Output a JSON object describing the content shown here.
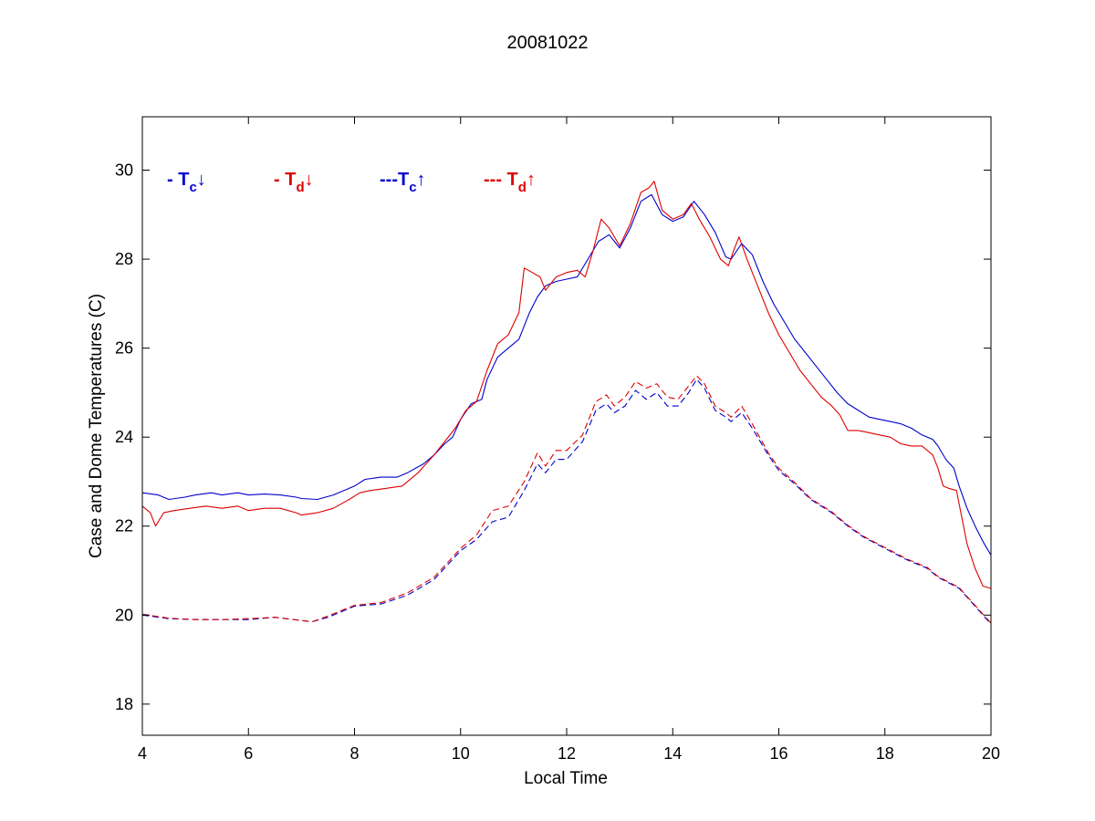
{
  "chart_data": {
    "type": "line",
    "title": "20081022",
    "xlabel": "Local Time",
    "ylabel": "Case and Dome Temperatures (C)",
    "xlim": [
      4,
      20
    ],
    "ylim": [
      17.3,
      31.2
    ],
    "xticks": [
      4,
      6,
      8,
      10,
      12,
      14,
      16,
      18,
      20
    ],
    "yticks": [
      18,
      20,
      22,
      24,
      26,
      28,
      30
    ],
    "grid": false,
    "legend_placement": "top-left",
    "legend": [
      {
        "prefix": "- ",
        "main": "T",
        "sub": "c",
        "arrow": "↓",
        "color": "#0000cc"
      },
      {
        "prefix": "- ",
        "main": "T",
        "sub": "d",
        "arrow": "↓",
        "color": "#dd0000"
      },
      {
        "prefix": "---",
        "main": "T",
        "sub": "c",
        "arrow": "↑",
        "color": "#0000cc"
      },
      {
        "prefix": "--- ",
        "main": "T",
        "sub": "d",
        "arrow": "↑",
        "color": "#dd0000"
      }
    ],
    "series": [
      {
        "color": "#0000cc",
        "dashed": false,
        "points": [
          [
            4.0,
            22.75
          ],
          [
            4.3,
            22.7
          ],
          [
            4.5,
            22.6
          ],
          [
            4.8,
            22.65
          ],
          [
            5.0,
            22.7
          ],
          [
            5.3,
            22.75
          ],
          [
            5.5,
            22.7
          ],
          [
            5.8,
            22.75
          ],
          [
            6.0,
            22.7
          ],
          [
            6.3,
            22.72
          ],
          [
            6.6,
            22.7
          ],
          [
            6.9,
            22.65
          ],
          [
            7.0,
            22.62
          ],
          [
            7.3,
            22.6
          ],
          [
            7.6,
            22.7
          ],
          [
            8.0,
            22.9
          ],
          [
            8.2,
            23.05
          ],
          [
            8.5,
            23.1
          ],
          [
            8.8,
            23.1
          ],
          [
            9.0,
            23.2
          ],
          [
            9.3,
            23.4
          ],
          [
            9.5,
            23.6
          ],
          [
            9.7,
            23.85
          ],
          [
            9.85,
            24.0
          ],
          [
            10.0,
            24.4
          ],
          [
            10.2,
            24.75
          ],
          [
            10.4,
            24.85
          ],
          [
            10.5,
            25.3
          ],
          [
            10.7,
            25.8
          ],
          [
            10.9,
            26.0
          ],
          [
            11.1,
            26.2
          ],
          [
            11.3,
            26.8
          ],
          [
            11.45,
            27.15
          ],
          [
            11.6,
            27.4
          ],
          [
            11.8,
            27.5
          ],
          [
            12.0,
            27.55
          ],
          [
            12.2,
            27.6
          ],
          [
            12.4,
            28.0
          ],
          [
            12.6,
            28.4
          ],
          [
            12.8,
            28.55
          ],
          [
            13.0,
            28.25
          ],
          [
            13.2,
            28.7
          ],
          [
            13.4,
            29.3
          ],
          [
            13.6,
            29.45
          ],
          [
            13.8,
            29.0
          ],
          [
            14.0,
            28.85
          ],
          [
            14.2,
            28.95
          ],
          [
            14.4,
            29.3
          ],
          [
            14.6,
            29.0
          ],
          [
            14.8,
            28.6
          ],
          [
            15.0,
            28.05
          ],
          [
            15.1,
            28.0
          ],
          [
            15.3,
            28.35
          ],
          [
            15.5,
            28.1
          ],
          [
            15.7,
            27.5
          ],
          [
            15.9,
            27.0
          ],
          [
            16.1,
            26.6
          ],
          [
            16.3,
            26.2
          ],
          [
            16.5,
            25.9
          ],
          [
            16.7,
            25.6
          ],
          [
            16.9,
            25.3
          ],
          [
            17.1,
            25.0
          ],
          [
            17.3,
            24.75
          ],
          [
            17.5,
            24.6
          ],
          [
            17.7,
            24.45
          ],
          [
            17.9,
            24.4
          ],
          [
            18.1,
            24.35
          ],
          [
            18.3,
            24.3
          ],
          [
            18.5,
            24.2
          ],
          [
            18.7,
            24.05
          ],
          [
            18.9,
            23.95
          ],
          [
            19.0,
            23.8
          ],
          [
            19.15,
            23.5
          ],
          [
            19.3,
            23.3
          ],
          [
            19.4,
            22.9
          ],
          [
            19.55,
            22.4
          ],
          [
            19.7,
            22.0
          ],
          [
            19.85,
            21.65
          ],
          [
            20.0,
            21.35
          ]
        ]
      },
      {
        "color": "#dd0000",
        "dashed": false,
        "points": [
          [
            4.0,
            22.45
          ],
          [
            4.15,
            22.3
          ],
          [
            4.25,
            22.0
          ],
          [
            4.4,
            22.3
          ],
          [
            4.6,
            22.35
          ],
          [
            4.9,
            22.4
          ],
          [
            5.2,
            22.45
          ],
          [
            5.5,
            22.4
          ],
          [
            5.8,
            22.45
          ],
          [
            6.0,
            22.35
          ],
          [
            6.3,
            22.4
          ],
          [
            6.6,
            22.4
          ],
          [
            6.9,
            22.3
          ],
          [
            7.0,
            22.25
          ],
          [
            7.3,
            22.3
          ],
          [
            7.6,
            22.4
          ],
          [
            7.9,
            22.6
          ],
          [
            8.1,
            22.75
          ],
          [
            8.3,
            22.8
          ],
          [
            8.6,
            22.85
          ],
          [
            8.9,
            22.9
          ],
          [
            9.2,
            23.2
          ],
          [
            9.5,
            23.6
          ],
          [
            9.7,
            23.9
          ],
          [
            9.9,
            24.2
          ],
          [
            10.1,
            24.6
          ],
          [
            10.3,
            24.8
          ],
          [
            10.5,
            25.5
          ],
          [
            10.7,
            26.1
          ],
          [
            10.9,
            26.3
          ],
          [
            11.1,
            26.8
          ],
          [
            11.2,
            27.8
          ],
          [
            11.35,
            27.7
          ],
          [
            11.5,
            27.6
          ],
          [
            11.6,
            27.3
          ],
          [
            11.8,
            27.6
          ],
          [
            12.0,
            27.7
          ],
          [
            12.2,
            27.75
          ],
          [
            12.35,
            27.6
          ],
          [
            12.5,
            28.2
          ],
          [
            12.65,
            28.9
          ],
          [
            12.8,
            28.7
          ],
          [
            13.0,
            28.3
          ],
          [
            13.2,
            28.8
          ],
          [
            13.4,
            29.5
          ],
          [
            13.55,
            29.6
          ],
          [
            13.65,
            29.75
          ],
          [
            13.8,
            29.1
          ],
          [
            14.0,
            28.9
          ],
          [
            14.2,
            29.0
          ],
          [
            14.35,
            29.25
          ],
          [
            14.5,
            28.9
          ],
          [
            14.7,
            28.5
          ],
          [
            14.9,
            28.0
          ],
          [
            15.05,
            27.85
          ],
          [
            15.15,
            28.2
          ],
          [
            15.25,
            28.5
          ],
          [
            15.4,
            28.0
          ],
          [
            15.6,
            27.4
          ],
          [
            15.8,
            26.8
          ],
          [
            16.0,
            26.3
          ],
          [
            16.2,
            25.9
          ],
          [
            16.4,
            25.5
          ],
          [
            16.6,
            25.2
          ],
          [
            16.8,
            24.9
          ],
          [
            17.0,
            24.7
          ],
          [
            17.15,
            24.5
          ],
          [
            17.3,
            24.15
          ],
          [
            17.5,
            24.15
          ],
          [
            17.7,
            24.1
          ],
          [
            17.9,
            24.05
          ],
          [
            18.1,
            24.0
          ],
          [
            18.3,
            23.85
          ],
          [
            18.5,
            23.8
          ],
          [
            18.7,
            23.8
          ],
          [
            18.9,
            23.6
          ],
          [
            19.0,
            23.3
          ],
          [
            19.1,
            22.9
          ],
          [
            19.2,
            22.85
          ],
          [
            19.35,
            22.8
          ],
          [
            19.45,
            22.2
          ],
          [
            19.55,
            21.6
          ],
          [
            19.7,
            21.05
          ],
          [
            19.85,
            20.65
          ],
          [
            20.0,
            20.6
          ]
        ]
      },
      {
        "color": "#0000cc",
        "dashed": true,
        "points": [
          [
            4.0,
            20.0
          ],
          [
            4.5,
            19.92
          ],
          [
            5.0,
            19.9
          ],
          [
            5.5,
            19.9
          ],
          [
            6.0,
            19.9
          ],
          [
            6.5,
            19.95
          ],
          [
            7.0,
            19.88
          ],
          [
            7.2,
            19.85
          ],
          [
            7.5,
            19.95
          ],
          [
            8.0,
            20.2
          ],
          [
            8.5,
            20.25
          ],
          [
            9.0,
            20.45
          ],
          [
            9.5,
            20.8
          ],
          [
            10.0,
            21.45
          ],
          [
            10.3,
            21.7
          ],
          [
            10.6,
            22.1
          ],
          [
            10.9,
            22.2
          ],
          [
            11.2,
            22.8
          ],
          [
            11.45,
            23.4
          ],
          [
            11.6,
            23.2
          ],
          [
            11.8,
            23.5
          ],
          [
            12.0,
            23.5
          ],
          [
            12.3,
            23.9
          ],
          [
            12.55,
            24.6
          ],
          [
            12.75,
            24.75
          ],
          [
            12.9,
            24.55
          ],
          [
            13.1,
            24.7
          ],
          [
            13.3,
            25.05
          ],
          [
            13.5,
            24.85
          ],
          [
            13.7,
            25.0
          ],
          [
            13.9,
            24.7
          ],
          [
            14.1,
            24.7
          ],
          [
            14.3,
            25.0
          ],
          [
            14.45,
            25.3
          ],
          [
            14.6,
            25.1
          ],
          [
            14.8,
            24.6
          ],
          [
            15.0,
            24.45
          ],
          [
            15.1,
            24.35
          ],
          [
            15.3,
            24.55
          ],
          [
            15.5,
            24.2
          ],
          [
            15.8,
            23.6
          ],
          [
            16.0,
            23.25
          ],
          [
            16.3,
            22.95
          ],
          [
            16.6,
            22.6
          ],
          [
            17.0,
            22.3
          ],
          [
            17.3,
            22.0
          ],
          [
            17.6,
            21.75
          ],
          [
            18.0,
            21.5
          ],
          [
            18.4,
            21.25
          ],
          [
            18.8,
            21.05
          ],
          [
            19.0,
            20.85
          ],
          [
            19.4,
            20.6
          ],
          [
            19.7,
            20.2
          ],
          [
            20.0,
            19.8
          ]
        ]
      },
      {
        "color": "#dd0000",
        "dashed": true,
        "points": [
          [
            4.0,
            20.02
          ],
          [
            4.5,
            19.93
          ],
          [
            5.0,
            19.9
          ],
          [
            5.5,
            19.9
          ],
          [
            6.0,
            19.92
          ],
          [
            6.5,
            19.95
          ],
          [
            7.0,
            19.88
          ],
          [
            7.2,
            19.85
          ],
          [
            7.5,
            19.98
          ],
          [
            8.0,
            20.22
          ],
          [
            8.5,
            20.28
          ],
          [
            9.0,
            20.5
          ],
          [
            9.5,
            20.85
          ],
          [
            10.0,
            21.5
          ],
          [
            10.3,
            21.8
          ],
          [
            10.6,
            22.35
          ],
          [
            10.9,
            22.45
          ],
          [
            11.2,
            23.0
          ],
          [
            11.45,
            23.65
          ],
          [
            11.6,
            23.35
          ],
          [
            11.8,
            23.7
          ],
          [
            12.0,
            23.7
          ],
          [
            12.3,
            24.05
          ],
          [
            12.55,
            24.8
          ],
          [
            12.75,
            24.95
          ],
          [
            12.9,
            24.7
          ],
          [
            13.1,
            24.9
          ],
          [
            13.3,
            25.25
          ],
          [
            13.5,
            25.1
          ],
          [
            13.7,
            25.2
          ],
          [
            13.9,
            24.9
          ],
          [
            14.1,
            24.85
          ],
          [
            14.3,
            25.15
          ],
          [
            14.45,
            25.38
          ],
          [
            14.6,
            25.2
          ],
          [
            14.8,
            24.7
          ],
          [
            15.0,
            24.55
          ],
          [
            15.1,
            24.45
          ],
          [
            15.3,
            24.7
          ],
          [
            15.5,
            24.3
          ],
          [
            15.8,
            23.65
          ],
          [
            16.0,
            23.3
          ],
          [
            16.3,
            22.98
          ],
          [
            16.6,
            22.62
          ],
          [
            17.0,
            22.32
          ],
          [
            17.3,
            22.02
          ],
          [
            17.6,
            21.77
          ],
          [
            18.0,
            21.52
          ],
          [
            18.4,
            21.27
          ],
          [
            18.8,
            21.07
          ],
          [
            19.0,
            20.87
          ],
          [
            19.4,
            20.62
          ],
          [
            19.7,
            20.22
          ],
          [
            20.0,
            19.82
          ]
        ]
      }
    ]
  }
}
